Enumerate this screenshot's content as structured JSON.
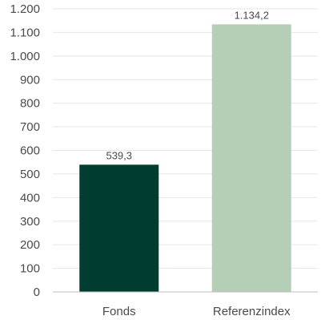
{
  "chart_data": {
    "type": "bar",
    "categories": [
      "Fonds",
      "Referenzindex"
    ],
    "values": [
      539.3,
      1134.2
    ],
    "value_labels": [
      "539,3",
      "1.134,2"
    ],
    "bar_colors": [
      "#003d31",
      "#b4cfb5"
    ],
    "ylim": [
      0,
      1200
    ],
    "yticks": [
      0,
      100,
      200,
      300,
      400,
      500,
      600,
      700,
      800,
      900,
      1000,
      1100,
      1200
    ],
    "ytick_labels": [
      "0",
      "100",
      "200",
      "300",
      "400",
      "500",
      "600",
      "700",
      "800",
      "900",
      "1.000",
      "1.100",
      "1.200"
    ],
    "grid": true,
    "grid_color": "#e6e6e6",
    "axis_color": "#bfbfbf",
    "title": "",
    "xlabel": "",
    "ylabel": ""
  }
}
